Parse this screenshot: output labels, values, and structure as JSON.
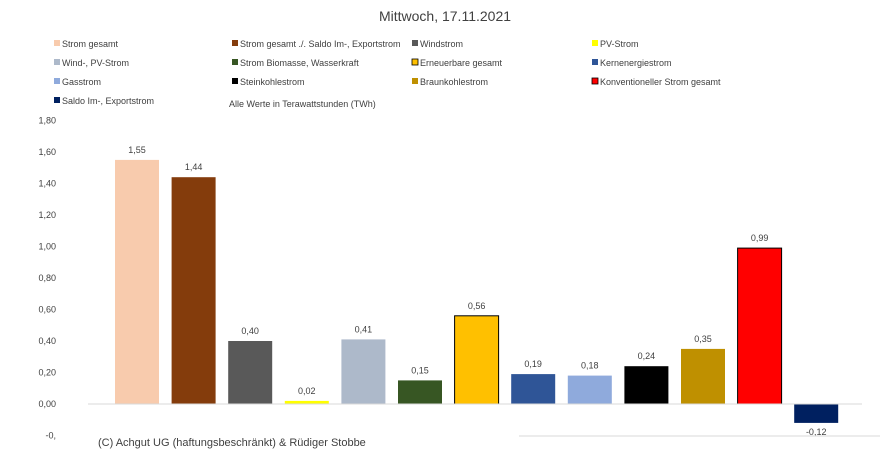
{
  "chart_data": {
    "type": "bar",
    "title": "Mittwoch, 17.11.2021",
    "subtitle": "Alle Werte in Terawattstunden (TWh)",
    "xlabel": "",
    "ylabel": "",
    "ylim": [
      -0.2,
      1.8
    ],
    "yticks": [
      "1,80",
      "1,60",
      "1,40",
      "1,20",
      "1,00",
      "0,80",
      "0,60",
      "0,40",
      "0,20",
      "0,00",
      "-0,"
    ],
    "grid": false,
    "legend_position": "top",
    "categories": [
      "Strom gesamt",
      "Strom gesamt ./. Saldo Im-, Exportstrom",
      "Windstrom",
      "PV-Strom",
      "Wind-, PV-Strom",
      "Strom Biomasse, Wasserkraft",
      "Erneuerbare gesamt",
      "Kernenergiestrom",
      "Gasstrom",
      "Steinkohlestrom",
      "Braunkohlestrom",
      "Konventioneller Strom gesamt",
      "Saldo Im-, Exportstrom"
    ],
    "values": [
      1.55,
      1.44,
      0.4,
      0.02,
      0.41,
      0.15,
      0.56,
      0.19,
      0.18,
      0.24,
      0.35,
      0.99,
      -0.12
    ],
    "data_labels": [
      "1,55",
      "1,44",
      "0,40",
      "0,02",
      "0,41",
      "0,15",
      "0,56",
      "0,19",
      "0,18",
      "0,24",
      "0,35",
      "0,99",
      "-0,12"
    ],
    "colors": [
      "#F8CBAD",
      "#843C0C",
      "#595959",
      "#FFFF00",
      "#ADB9CA",
      "#375623",
      "#FFC000",
      "#2F5597",
      "#8FAADC",
      "#000000",
      "#BF9000",
      "#FF0000",
      "#002060"
    ],
    "outlined": [
      false,
      false,
      false,
      false,
      false,
      false,
      true,
      false,
      false,
      false,
      false,
      true,
      false
    ]
  },
  "footer": {
    "credit": "(C) Achgut UG (haftungsbeschränkt) & Rüdiger Stobbe"
  }
}
